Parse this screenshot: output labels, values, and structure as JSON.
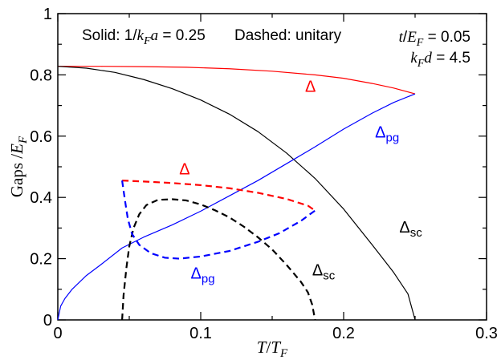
{
  "chart_data": {
    "type": "line",
    "xlabel_main": "T",
    "xlabel_sub_var": "T",
    "xlabel_sub": "F",
    "ylabel_main": "Gaps /",
    "ylabel_var": "E",
    "ylabel_sub": "F",
    "xlim": [
      0,
      0.3
    ],
    "ylim": [
      0,
      1
    ],
    "x_ticks": [
      0,
      0.1,
      0.2,
      0.3
    ],
    "x_tick_labels": [
      "0",
      "0.1",
      "0.2",
      "0.3"
    ],
    "y_ticks": [
      0,
      0.2,
      0.4,
      0.6,
      0.8,
      1
    ],
    "y_tick_labels": [
      "0",
      "0.2",
      "0.4",
      "0.6",
      "0.8",
      "1"
    ],
    "grid": false,
    "annotations": {
      "solid_prefix": "Solid: 1/",
      "solid_k": "k",
      "solid_F": "F",
      "solid_a": "a",
      "solid_value": " = 0.25",
      "dashed_text": "Dashed: unitary",
      "param1_var": "t",
      "param1_mid": "/",
      "param1_E": "E",
      "param1_F": "F",
      "param1_value": " = 0.05",
      "param2_k": "k",
      "param2_F": "F",
      "param2_d": "d",
      "param2_value": " = 4.5"
    },
    "series": [
      {
        "style": "solid",
        "color": "#ff0000",
        "label_main": "Δ",
        "label_sub": "",
        "label_pos": [
          0.173,
          0.745
        ],
        "points": [
          [
            0,
            0.828
          ],
          [
            0.03,
            0.828
          ],
          [
            0.06,
            0.827
          ],
          [
            0.09,
            0.825
          ],
          [
            0.12,
            0.82
          ],
          [
            0.15,
            0.812
          ],
          [
            0.18,
            0.8
          ],
          [
            0.2,
            0.789
          ],
          [
            0.22,
            0.772
          ],
          [
            0.235,
            0.757
          ],
          [
            0.25,
            0.738
          ]
        ]
      },
      {
        "style": "solid",
        "color": "#000000",
        "label_main": "Δ",
        "label_sub": "sc",
        "label_pos": [
          0.239,
          0.285
        ],
        "points": [
          [
            0,
            0.828
          ],
          [
            0.02,
            0.822
          ],
          [
            0.04,
            0.808
          ],
          [
            0.06,
            0.785
          ],
          [
            0.08,
            0.755
          ],
          [
            0.1,
            0.718
          ],
          [
            0.12,
            0.672
          ],
          [
            0.14,
            0.615
          ],
          [
            0.16,
            0.545
          ],
          [
            0.18,
            0.462
          ],
          [
            0.2,
            0.362
          ],
          [
            0.22,
            0.245
          ],
          [
            0.235,
            0.155
          ],
          [
            0.245,
            0.085
          ],
          [
            0.25,
            0.0
          ]
        ]
      },
      {
        "style": "solid",
        "color": "#0000ff",
        "label_main": "Δ",
        "label_sub": "pg",
        "label_pos": [
          0.222,
          0.595
        ],
        "points": [
          [
            0,
            0.0
          ],
          [
            0.002,
            0.045
          ],
          [
            0.005,
            0.07
          ],
          [
            0.01,
            0.1
          ],
          [
            0.02,
            0.145
          ],
          [
            0.03,
            0.18
          ],
          [
            0.045,
            0.235
          ],
          [
            0.06,
            0.27
          ],
          [
            0.08,
            0.31
          ],
          [
            0.1,
            0.355
          ],
          [
            0.12,
            0.405
          ],
          [
            0.14,
            0.455
          ],
          [
            0.16,
            0.51
          ],
          [
            0.18,
            0.565
          ],
          [
            0.2,
            0.623
          ],
          [
            0.22,
            0.675
          ],
          [
            0.235,
            0.71
          ],
          [
            0.25,
            0.738
          ]
        ]
      },
      {
        "style": "dashed",
        "color": "#ff0000",
        "label_main": "Δ",
        "label_sub": "",
        "label_pos": [
          0.085,
          0.475
        ],
        "points": [
          [
            0.045,
            0.455
          ],
          [
            0.06,
            0.452
          ],
          [
            0.08,
            0.447
          ],
          [
            0.1,
            0.44
          ],
          [
            0.12,
            0.43
          ],
          [
            0.14,
            0.415
          ],
          [
            0.16,
            0.395
          ],
          [
            0.175,
            0.373
          ],
          [
            0.18,
            0.357
          ]
        ]
      },
      {
        "style": "dashed",
        "color": "#000000",
        "label_main": "Δ",
        "label_sub": "sc",
        "label_pos": [
          0.178,
          0.145
        ],
        "points": [
          [
            0.045,
            0.0
          ],
          [
            0.046,
            0.08
          ],
          [
            0.048,
            0.17
          ],
          [
            0.05,
            0.24
          ],
          [
            0.053,
            0.3
          ],
          [
            0.057,
            0.345
          ],
          [
            0.062,
            0.375
          ],
          [
            0.07,
            0.392
          ],
          [
            0.08,
            0.394
          ],
          [
            0.09,
            0.39
          ],
          [
            0.1,
            0.377
          ],
          [
            0.11,
            0.358
          ],
          [
            0.12,
            0.335
          ],
          [
            0.13,
            0.305
          ],
          [
            0.14,
            0.27
          ],
          [
            0.15,
            0.23
          ],
          [
            0.16,
            0.18
          ],
          [
            0.17,
            0.125
          ],
          [
            0.175,
            0.09
          ],
          [
            0.178,
            0.05
          ],
          [
            0.18,
            0.0
          ]
        ]
      },
      {
        "style": "dashed",
        "color": "#0000ff",
        "label_main": "Δ",
        "label_sub": "pg",
        "label_pos": [
          0.093,
          0.135
        ],
        "points": [
          [
            0.045,
            0.455
          ],
          [
            0.047,
            0.39
          ],
          [
            0.049,
            0.33
          ],
          [
            0.052,
            0.28
          ],
          [
            0.057,
            0.245
          ],
          [
            0.065,
            0.218
          ],
          [
            0.075,
            0.203
          ],
          [
            0.085,
            0.2
          ],
          [
            0.1,
            0.207
          ],
          [
            0.12,
            0.225
          ],
          [
            0.14,
            0.255
          ],
          [
            0.155,
            0.283
          ],
          [
            0.17,
            0.323
          ],
          [
            0.18,
            0.357
          ]
        ]
      }
    ]
  }
}
